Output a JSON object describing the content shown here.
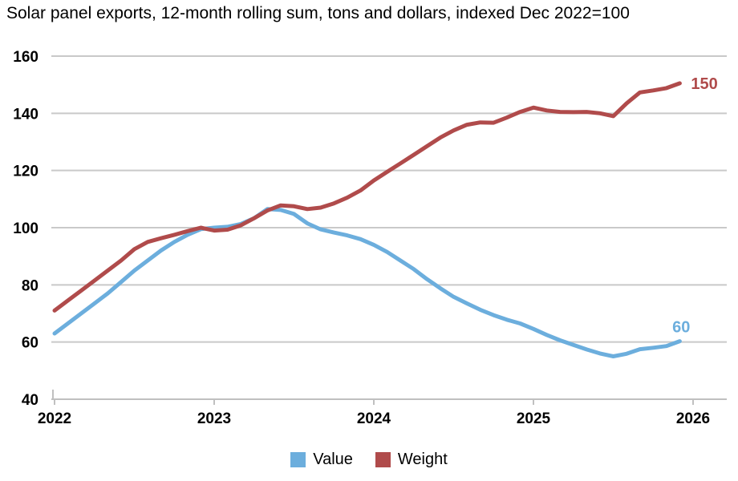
{
  "chart_data": {
    "type": "line",
    "title": "Solar panel exports, 12-month rolling sum, tons and dollars, indexed Dec 2022=100",
    "x_tick_labels": [
      "2022",
      "2023",
      "2024",
      "2025",
      "2026"
    ],
    "x_resolution": "monthly",
    "ylim": [
      40,
      160
    ],
    "yticks": [
      40,
      60,
      80,
      100,
      120,
      140,
      160
    ],
    "grid": "horizontal",
    "legend_position": "bottom-center",
    "series": [
      {
        "name": "Value",
        "color": "#6CAEDD",
        "end_label": "60",
        "values": [
          63,
          66.5,
          70,
          73.5,
          77,
          81,
          85,
          88.5,
          92,
          95,
          97.5,
          99.5,
          100,
          100.3,
          101.3,
          103.3,
          106.5,
          106.2,
          104.8,
          101.5,
          99.4,
          98.3,
          97.3,
          96,
          94,
          91.5,
          88.5,
          85.5,
          82,
          78.8,
          75.8,
          73.5,
          71.3,
          69.4,
          67.8,
          66.5,
          64.6,
          62.5,
          60.6,
          59,
          57.4,
          56,
          55,
          55.9,
          57.5,
          58,
          58.6,
          60.3
        ]
      },
      {
        "name": "Weight",
        "color": "#B04B4B",
        "end_label": "150",
        "values": [
          71,
          74.5,
          78,
          81.5,
          85,
          88.5,
          92.5,
          95,
          96.3,
          97.5,
          98.8,
          100,
          99,
          99.3,
          100.8,
          103.3,
          106,
          107.8,
          107.5,
          106.5,
          107,
          108.5,
          110.5,
          113,
          116.5,
          119.5,
          122.5,
          125.5,
          128.5,
          131.5,
          134,
          136,
          136.8,
          136.7,
          138.5,
          140.5,
          142,
          141,
          140.5,
          140.4,
          140.5,
          140,
          139,
          143.5,
          147.3,
          148,
          148.8,
          150.5
        ]
      }
    ]
  },
  "legend": {
    "items": [
      {
        "label": "Value",
        "color": "#6CAEDD"
      },
      {
        "label": "Weight",
        "color": "#B04B4B"
      }
    ]
  },
  "style": {
    "grid_color": "#C9C9C9",
    "axis_color": "#C0C0C0",
    "text_color": "#000000"
  }
}
